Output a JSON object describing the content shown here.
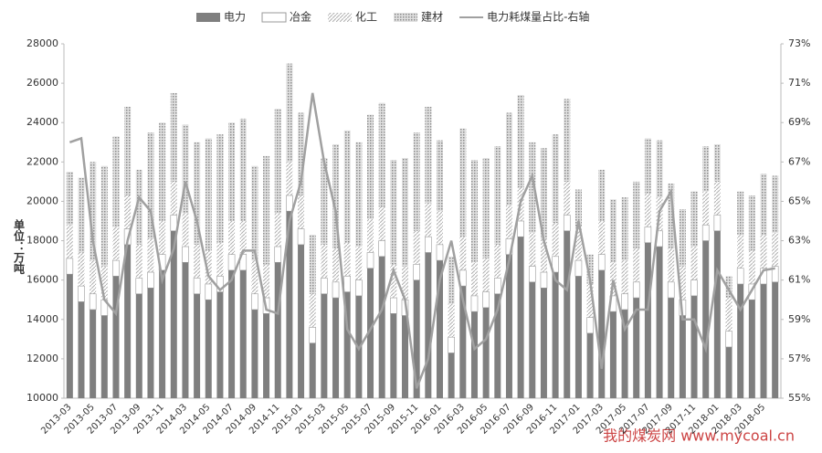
{
  "chart_data": {
    "type": "bar-line",
    "legend_position": "top",
    "y_axis_label": "单位：万吨",
    "watermark": "我的煤炭网 www.mycoal.cn",
    "categories": [
      "2013-03",
      null,
      "2013-05",
      null,
      "2013-07",
      null,
      "2013-09",
      null,
      "2013-11",
      null,
      "2014-03",
      null,
      "2014-05",
      null,
      "2014-07",
      null,
      "2014-09",
      null,
      "2014-11",
      null,
      "2015-01",
      null,
      "2015-03",
      null,
      "2015-05",
      null,
      "2015-07",
      null,
      "2015-09",
      null,
      "2015-11",
      null,
      "2016-01",
      null,
      "2016-03",
      null,
      "2016-05",
      null,
      "2016-07",
      null,
      "2016-09",
      null,
      "2016-11",
      null,
      "2017-01",
      null,
      "2017-03",
      null,
      "2017-05",
      null,
      "2017-07",
      null,
      "2017-09",
      null,
      "2017-11",
      null,
      "2018-01",
      null,
      "2018-03",
      null,
      "2018-05",
      null
    ],
    "series": [
      {
        "name": "电力",
        "color": "#7f7f7f",
        "values": [
          16300,
          14900,
          14500,
          14200,
          16200,
          17800,
          15300,
          15600,
          16500,
          18500,
          16900,
          15300,
          15000,
          15400,
          16500,
          16500,
          14500,
          14300,
          16900,
          19500,
          17800,
          12800,
          15300,
          15100,
          15400,
          15200,
          16600,
          17200,
          14300,
          14200,
          16000,
          17400,
          17000,
          12300,
          15700,
          14400,
          14600,
          15300,
          17300,
          18200,
          15900,
          15600,
          16400,
          18500,
          16200,
          13300,
          16500,
          14400,
          14500,
          15100,
          17900,
          17700,
          15100,
          14200,
          15200,
          18000,
          18500,
          12600,
          15800,
          15000,
          15800,
          15900
        ]
      },
      {
        "name": "冶金",
        "color": "#ffffff",
        "values": [
          800,
          800,
          800,
          800,
          800,
          800,
          800,
          800,
          800,
          800,
          800,
          800,
          800,
          800,
          800,
          800,
          800,
          800,
          800,
          800,
          800,
          800,
          800,
          800,
          800,
          800,
          800,
          800,
          800,
          800,
          800,
          800,
          800,
          800,
          800,
          800,
          800,
          800,
          800,
          800,
          800,
          800,
          800,
          800,
          800,
          800,
          800,
          800,
          800,
          800,
          800,
          800,
          800,
          800,
          800,
          800,
          800,
          800,
          800,
          800,
          800,
          800
        ]
      },
      {
        "name": "化工",
        "color": "#c8c8c8",
        "values": [
          1700,
          1700,
          1700,
          1700,
          1700,
          1700,
          1700,
          1700,
          1700,
          1700,
          1700,
          1700,
          1700,
          1700,
          1700,
          1700,
          1700,
          1700,
          1700,
          1700,
          1700,
          1700,
          1700,
          1700,
          1700,
          1700,
          1700,
          1700,
          1700,
          1700,
          1700,
          1700,
          1700,
          1700,
          1700,
          1700,
          1700,
          1700,
          1700,
          1700,
          1700,
          1700,
          1700,
          1700,
          1700,
          1700,
          1700,
          1700,
          1700,
          1700,
          1700,
          1700,
          1700,
          1700,
          1700,
          1700,
          1700,
          1700,
          1700,
          1700,
          1700,
          1700
        ]
      },
      {
        "name": "建材",
        "color": "#a6a6a6",
        "values": [
          2700,
          3800,
          5000,
          5100,
          4600,
          4500,
          3800,
          5400,
          5000,
          4500,
          4500,
          5200,
          5700,
          5500,
          5000,
          5200,
          4800,
          5500,
          5300,
          5000,
          4200,
          3000,
          4400,
          5300,
          5700,
          5300,
          5300,
          5300,
          5300,
          5500,
          5000,
          4900,
          3600,
          2400,
          5500,
          5200,
          5100,
          5000,
          4700,
          4700,
          4600,
          4600,
          4500,
          4200,
          1900,
          1500,
          2600,
          3200,
          3200,
          3400,
          2800,
          2900,
          3300,
          2900,
          2800,
          2300,
          1900,
          1100,
          2200,
          2800,
          3100,
          2900
        ]
      },
      {
        "name": "电力耗煤量占比-右轴",
        "color": "#a0a0a0",
        "axis": "y2",
        "values": [
          68,
          68.2,
          63,
          60,
          59.3,
          63,
          65.2,
          64.5,
          61,
          62.6,
          66,
          64,
          61.2,
          60.5,
          61,
          62.5,
          62.5,
          59.5,
          59.3,
          64,
          66,
          70.5,
          67,
          64.5,
          58.5,
          57.5,
          58.5,
          59.5,
          61.5,
          60,
          55.5,
          57,
          61,
          63,
          60,
          57.5,
          58,
          59.5,
          62,
          65,
          66.3,
          63,
          61,
          60.5,
          64,
          61,
          56.5,
          61,
          58.5,
          59.5,
          59.5,
          64.5,
          65.5,
          59,
          59,
          57.5,
          61.5,
          60.5,
          59.5,
          60.5,
          61.5,
          61.6
        ]
      }
    ],
    "ylim": [
      10000,
      28000
    ],
    "yticks": [
      10000,
      12000,
      14000,
      16000,
      18000,
      20000,
      22000,
      24000,
      26000,
      28000
    ],
    "y2lim": [
      55,
      73
    ],
    "y2ticks": [
      {
        "value": 55,
        "label": "55%"
      },
      {
        "value": 57,
        "label": "57%"
      },
      {
        "value": 59,
        "label": "59%"
      },
      {
        "value": 61,
        "label": "61%"
      },
      {
        "value": 63,
        "label": "63%"
      },
      {
        "value": 65,
        "label": "65%"
      },
      {
        "value": 67,
        "label": "67%"
      },
      {
        "value": 69,
        "label": "69%"
      },
      {
        "value": 71,
        "label": "71%"
      },
      {
        "value": 73,
        "label": "73%"
      }
    ]
  }
}
